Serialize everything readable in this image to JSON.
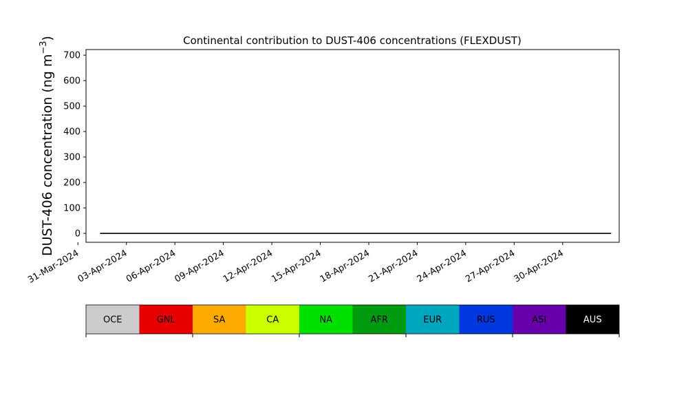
{
  "chart_data": {
    "type": "area",
    "title": "Continental contribution to DUST-406 concentrations (FLEXDUST)",
    "ylabel_main": "DUST-406 concentration (ng m",
    "ylabel_exp": "−3",
    "ylabel_close": ")",
    "xlabel": "",
    "ylim": [
      -35,
      722
    ],
    "xlim": [
      "2024-03-31T12:00",
      "2024-05-03T12:00"
    ],
    "grid": false,
    "stacked": true,
    "yticks": [
      0,
      100,
      200,
      300,
      400,
      500,
      600,
      700
    ],
    "xticks": [
      "31-Mar-2024",
      "03-Apr-2024",
      "06-Apr-2024",
      "09-Apr-2024",
      "12-Apr-2024",
      "15-Apr-2024",
      "18-Apr-2024",
      "21-Apr-2024",
      "24-Apr-2024",
      "27-Apr-2024",
      "30-Apr-2024"
    ],
    "x": [
      "2024-04-01T09:00",
      "2024-04-01T21:00",
      "2024-04-02T00:00",
      "2024-04-02T06:00",
      "2024-04-02T12:00",
      "2024-04-02T18:00",
      "2024-04-03T03:00",
      "2024-04-03T09:00",
      "2024-04-03T18:00",
      "2024-04-04T00:00",
      "2024-04-04T06:00",
      "2024-04-04T15:00",
      "2024-04-05T00:00",
      "2024-04-05T06:00",
      "2024-04-05T15:00",
      "2024-04-05T21:00",
      "2024-04-06T09:00",
      "2024-04-06T18:00",
      "2024-04-07T03:00",
      "2024-04-07T12:00",
      "2024-04-08T00:00",
      "2024-04-09T00:00",
      "2024-04-10T00:00",
      "2024-04-11T00:00",
      "2024-04-11T12:00",
      "2024-04-12T15:00",
      "2024-04-13T00:00",
      "2024-04-13T12:00",
      "2024-04-14T06:00",
      "2024-04-14T12:00",
      "2024-04-14T18:00",
      "2024-04-15T06:00",
      "2024-04-15T12:00",
      "2024-04-15T18:00",
      "2024-04-15T22:00",
      "2024-04-16T00:00",
      "2024-04-16T03:00",
      "2024-04-16T06:00",
      "2024-04-16T12:00",
      "2024-04-17T00:00",
      "2024-04-17T06:00",
      "2024-04-17T12:00",
      "2024-04-18T00:00",
      "2024-04-18T06:00",
      "2024-04-18T12:00",
      "2024-04-18T18:00",
      "2024-04-19T00:00",
      "2024-04-19T06:00",
      "2024-04-19T12:00",
      "2024-04-19T18:00",
      "2024-04-20T00:00",
      "2024-04-20T12:00",
      "2024-04-21T00:00",
      "2024-04-21T06:00",
      "2024-04-21T12:00",
      "2024-04-22T00:00",
      "2024-04-22T06:00",
      "2024-04-22T12:00",
      "2024-04-23T00:00",
      "2024-04-23T12:00",
      "2024-04-24T00:00",
      "2024-04-24T12:00",
      "2024-04-25T06:00",
      "2024-04-25T12:00",
      "2024-04-26T00:00",
      "2024-04-26T12:00",
      "2024-04-27T00:00",
      "2024-04-27T12:00",
      "2024-04-28T00:00",
      "2024-04-28T12:00",
      "2024-04-29T00:00",
      "2024-04-29T06:00",
      "2024-04-29T12:00",
      "2024-04-30T00:00",
      "2024-04-30T06:00",
      "2024-04-30T12:00",
      "2024-04-30T18:00",
      "2024-05-01T00:00",
      "2024-05-01T12:00",
      "2024-05-02T00:00",
      "2024-05-02T12:00",
      "2024-05-03T00:00"
    ],
    "series": [
      {
        "name": "GNL",
        "values": [
          0,
          0,
          0,
          0,
          0,
          0,
          0,
          0,
          0,
          0,
          0,
          0,
          0,
          0,
          0,
          0,
          0,
          0,
          0,
          0,
          0,
          0,
          0,
          0,
          0,
          0,
          0,
          0,
          0,
          0,
          0,
          0,
          0,
          0,
          0,
          0,
          0,
          0,
          0,
          0,
          0,
          0,
          0,
          0,
          0,
          0,
          0,
          0,
          0,
          0,
          0,
          0,
          0,
          0,
          0,
          0,
          0,
          0,
          0,
          0,
          0,
          0,
          0,
          0,
          0,
          0,
          0,
          0,
          0,
          0,
          0,
          0,
          0,
          0,
          0,
          0,
          0,
          0,
          0,
          0,
          0,
          0
        ]
      },
      {
        "name": "NA",
        "values": [
          0,
          0,
          0,
          0,
          0,
          0,
          0,
          0,
          0,
          0,
          0,
          0,
          0,
          0,
          0,
          0,
          0,
          0,
          0,
          0,
          0,
          0,
          0,
          0,
          0,
          0,
          0,
          0,
          0,
          0,
          0,
          0,
          0,
          0,
          0,
          0,
          0,
          0,
          0,
          0,
          0,
          0,
          0,
          0,
          0,
          0,
          0,
          0,
          0,
          0,
          0,
          0,
          0,
          0,
          0,
          0,
          0,
          0,
          0,
          0,
          0,
          0,
          0,
          0,
          0,
          0,
          0,
          0,
          0,
          0,
          0,
          0,
          0,
          0,
          0,
          0,
          0,
          0,
          0,
          0,
          0,
          0
        ]
      },
      {
        "name": "ASI",
        "values": [
          0,
          0,
          0,
          0,
          0,
          0,
          0,
          0,
          0,
          0,
          0,
          0,
          0,
          0,
          0,
          0,
          0,
          0,
          0,
          0,
          0,
          0,
          0,
          0,
          0,
          0,
          0,
          0,
          0,
          0,
          0,
          0,
          0,
          0,
          0,
          0,
          0,
          0,
          0,
          0,
          0,
          0,
          0,
          0,
          0,
          0,
          0,
          0,
          0,
          0,
          0,
          0,
          0,
          0,
          0,
          0,
          0,
          0,
          0,
          0,
          0,
          0,
          0,
          0,
          0,
          0,
          0,
          0,
          0,
          0,
          0,
          0,
          0,
          0,
          0,
          0,
          0,
          0,
          0,
          0,
          0,
          0
        ]
      }
    ],
    "legend_placement": "below",
    "legend": [
      {
        "label": "OCE",
        "color": "#cccccc",
        "text_color": "#000000"
      },
      {
        "label": "GNL",
        "color": "#e60000",
        "text_color": "#000000"
      },
      {
        "label": "SA",
        "color": "#ffaa00",
        "text_color": "#000000"
      },
      {
        "label": "CA",
        "color": "#ccff00",
        "text_color": "#000000"
      },
      {
        "label": "NA",
        "color": "#00e000",
        "text_color": "#000000"
      },
      {
        "label": "AFR",
        "color": "#009a10",
        "text_color": "#000000"
      },
      {
        "label": "EUR",
        "color": "#00a6be",
        "text_color": "#000000"
      },
      {
        "label": "RUS",
        "color": "#0038e0",
        "text_color": "#000000"
      },
      {
        "label": "ASI",
        "color": "#6600a8",
        "text_color": "#000000"
      },
      {
        "label": "AUS",
        "color": "#000000",
        "text_color": "#ffffff"
      }
    ]
  }
}
